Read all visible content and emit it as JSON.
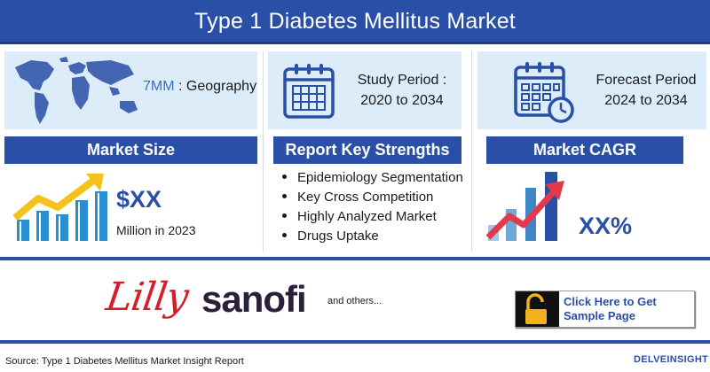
{
  "header": {
    "title": "Type 1 Diabetes Mellitus Market"
  },
  "geography": {
    "label_highlight": "7MM",
    "label_rest": " : Geography",
    "icon": "world-map-icon"
  },
  "study_period": {
    "label": "Study Period :",
    "value": "2020 to 2034",
    "icon": "calendar-icon"
  },
  "forecast_period": {
    "label": "Forecast Period",
    "value": "2024 to 2034",
    "icon": "calendar-clock-icon"
  },
  "market_size": {
    "heading": "Market Size",
    "value": "$XX",
    "caption": "Million in 2023",
    "icon": "growth-chart-icon"
  },
  "key_strengths": {
    "heading": "Report Key Strengths",
    "items": [
      "Epidemiology Segmentation",
      "Key Cross Competition",
      "Highly Analyzed Market",
      "Drugs Uptake"
    ]
  },
  "market_cagr": {
    "heading": "Market CAGR",
    "value": "XX%",
    "icon": "cagr-chart-icon"
  },
  "companies": {
    "lilly": "Lilly",
    "sanofi": "sanofi",
    "others": "and others..."
  },
  "cta": {
    "label": "Click Here to Get Sample Page",
    "icon": "unlock-icon"
  },
  "footer": {
    "source": "Source: Type 1 Diabetes Mellitus Market Insight Report",
    "brand_initial": "D",
    "brand_rest": "ELVEINSIGHT"
  },
  "colors": {
    "primary": "#2a4fa6",
    "panel": "#dcecf8",
    "accent_red": "#d31f2a",
    "arrow_gold": "#f3c21c"
  }
}
